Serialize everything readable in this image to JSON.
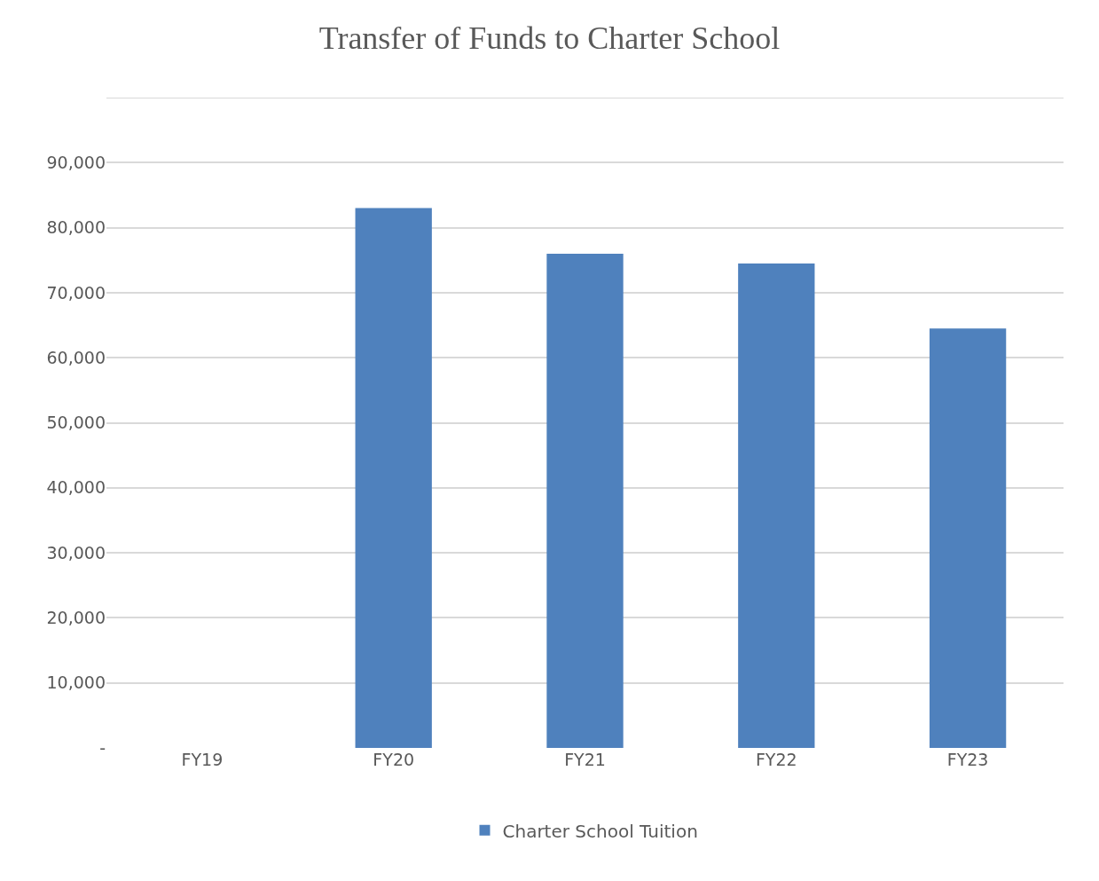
{
  "chart_data": {
    "type": "bar",
    "title": "Transfer of Funds to Charter School",
    "categories": [
      "FY19",
      "FY20",
      "FY21",
      "FY22",
      "FY23"
    ],
    "series": [
      {
        "name": "Charter School Tuition",
        "color": "#4f81bd",
        "values": [
          0,
          83000,
          76000,
          74500,
          64500
        ]
      }
    ],
    "ylim": [
      0,
      100000
    ],
    "yticks": [
      {
        "value": 0,
        "label": "-"
      },
      {
        "value": 10000,
        "label": "10,000"
      },
      {
        "value": 20000,
        "label": "20,000"
      },
      {
        "value": 30000,
        "label": "30,000"
      },
      {
        "value": 40000,
        "label": "40,000"
      },
      {
        "value": 50000,
        "label": "50,000"
      },
      {
        "value": 60000,
        "label": "60,000"
      },
      {
        "value": 70000,
        "label": "70,000"
      },
      {
        "value": 80000,
        "label": "80,000"
      },
      {
        "value": 90000,
        "label": "90,000"
      },
      {
        "value": 100000,
        "label": null
      }
    ],
    "grid": "y",
    "legend": "bottom"
  }
}
